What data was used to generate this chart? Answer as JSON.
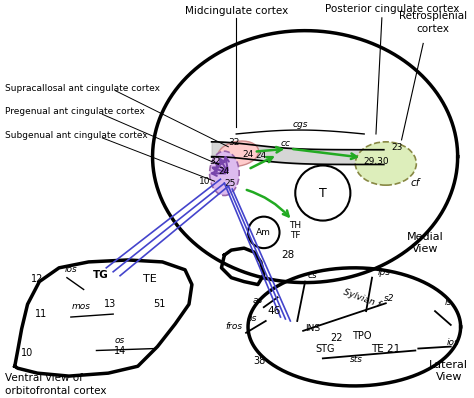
{
  "bg_color": "#ffffff",
  "line_color": "#000000",
  "blue_color": "#4444cc",
  "green_color": "#22aa22",
  "purple_color": "#7744aa",
  "labels": {
    "midcingulate": "Midcingulate cortex",
    "posterior_cing": "Posterior cingulate cortex",
    "retrosplenial": "Retrosplenial\ncortex",
    "supracallosal": "Supracallosal ant cingulate cortex",
    "pregenual": "Pregenual ant cingulate cortex",
    "subgenual": "Subgenual ant cingulate cortex",
    "medial_view": "Medial\nView",
    "lateral_view": "Lateral\nView",
    "ventral_view": "Ventral view of\norbitofrontal cortex"
  }
}
